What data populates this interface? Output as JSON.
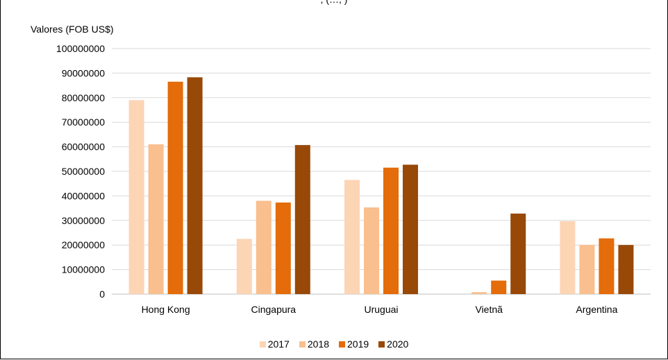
{
  "caption_top": ", (…, )",
  "chart_data": {
    "type": "bar",
    "ylabel": "Valores (FOB US$)",
    "ylim": [
      0,
      100000000
    ],
    "yticks": [
      0,
      10000000,
      20000000,
      30000000,
      40000000,
      50000000,
      60000000,
      70000000,
      80000000,
      90000000,
      100000000
    ],
    "grid": true,
    "legend_position": "bottom",
    "categories": [
      "Hong Kong",
      "Cingapura",
      "Uruguai",
      "Vietnã",
      "Argentina"
    ],
    "series": [
      {
        "name": "2017",
        "color": "#FCD5B5",
        "values": [
          79000000,
          22500000,
          46500000,
          0,
          29700000
        ]
      },
      {
        "name": "2018",
        "color": "#F9BF8E",
        "values": [
          61000000,
          38000000,
          35300000,
          800000,
          20000000
        ]
      },
      {
        "name": "2019",
        "color": "#E46C0A",
        "values": [
          86500000,
          37300000,
          51500000,
          5500000,
          22700000
        ]
      },
      {
        "name": "2020",
        "color": "#984807",
        "values": [
          88300000,
          60700000,
          52700000,
          32800000,
          20000000
        ]
      }
    ]
  }
}
